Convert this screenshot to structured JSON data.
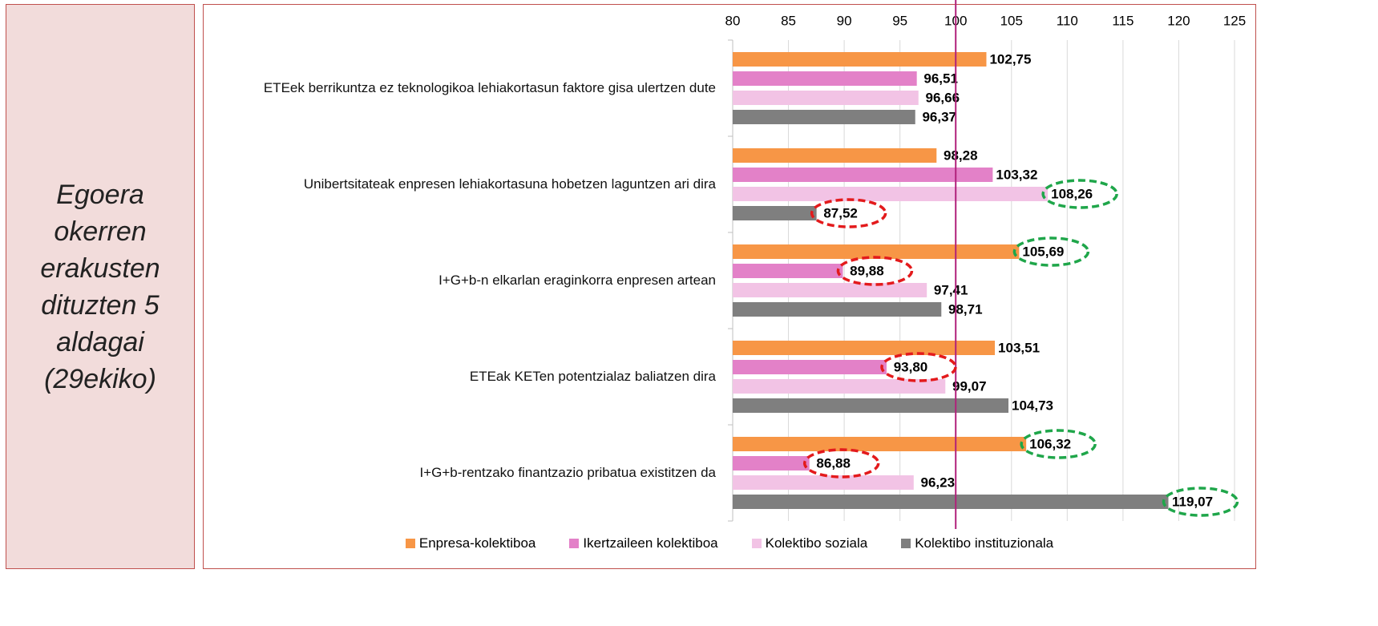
{
  "side_note": "Egoera okerren erakusten dituzten 5 aldagai (29ekiko)",
  "chart_data": {
    "type": "barh",
    "categories": [
      "ETEek berrikuntza ez teknologikoa lehiakortasun faktore gisa ulertzen dute",
      "Unibertsitateak enpresen lehiakortasuna hobetzen laguntzen ari dira",
      "I+G+b-n elkarlan eraginkorra enpresen artean",
      "ETEak KETen potentzialaz baliatzen dira",
      "I+G+b-rentzako finantzazio pribatua existitzen da"
    ],
    "series": [
      {
        "name": "Enpresa-kolektiboa",
        "color": "#f79646",
        "values": [
          102.75,
          98.28,
          105.69,
          103.51,
          106.32
        ],
        "value_labels": [
          "102,75",
          "98,28",
          "105,69",
          "103,51",
          "106,32"
        ]
      },
      {
        "name": "Ikertzaileen kolektiboa",
        "color": "#e381c8",
        "values": [
          96.51,
          103.32,
          89.88,
          93.8,
          86.88
        ],
        "value_labels": [
          "96,51",
          "103,32",
          "89,88",
          "93,80",
          "86,88"
        ]
      },
      {
        "name": "Kolektibo soziala",
        "color": "#f2c3e5",
        "values": [
          96.66,
          108.26,
          97.41,
          99.07,
          96.23
        ],
        "value_labels": [
          "96,66",
          "108,26",
          "97,41",
          "99,07",
          "96,23"
        ]
      },
      {
        "name": "Kolektibo instituzionala",
        "color": "#7f7f7f",
        "values": [
          96.37,
          87.52,
          98.71,
          104.73,
          119.07
        ],
        "value_labels": [
          "96,37",
          "87,52",
          "98,71",
          "104,73",
          "119,07"
        ]
      }
    ],
    "xlim": [
      80,
      125
    ],
    "xticks": [
      80,
      85,
      90,
      95,
      100,
      105,
      110,
      115,
      120,
      125
    ],
    "grid": true,
    "reference_line": {
      "value": 100,
      "color": "#b0217a"
    },
    "highlights": [
      {
        "series": 3,
        "index": 1,
        "color": "#e31a1c"
      },
      {
        "series": 2,
        "index": 1,
        "color": "#1fa64a"
      },
      {
        "series": 0,
        "index": 2,
        "color": "#1fa64a"
      },
      {
        "series": 1,
        "index": 2,
        "color": "#e31a1c"
      },
      {
        "series": 1,
        "index": 3,
        "color": "#e31a1c"
      },
      {
        "series": 0,
        "index": 4,
        "color": "#1fa64a"
      },
      {
        "series": 1,
        "index": 4,
        "color": "#e31a1c"
      },
      {
        "series": 3,
        "index": 4,
        "color": "#1fa64a"
      }
    ],
    "legend": "bottom"
  }
}
